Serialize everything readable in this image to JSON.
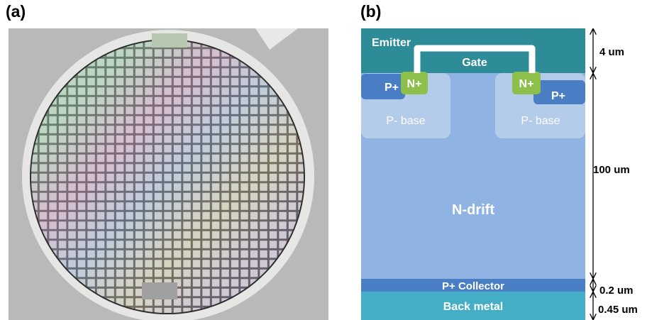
{
  "panels": {
    "a": {
      "label": "(a)"
    },
    "b": {
      "label": "(b)"
    }
  },
  "layers": {
    "emitter": "Emitter",
    "gate": "Gate",
    "p_plus_left": "P+",
    "n_plus_left": "N+",
    "p_base_left": "P- base",
    "n_plus_right": "N+",
    "p_plus_right": "P+",
    "p_base_right": "P- base",
    "n_drift": "N-drift",
    "p_collector": "P+ Collector",
    "back_metal": "Back metal"
  },
  "dimensions": {
    "emitter": "4 um",
    "drift": "100 um",
    "collector": "0.2 um",
    "back_metal": "0.45 um"
  }
}
